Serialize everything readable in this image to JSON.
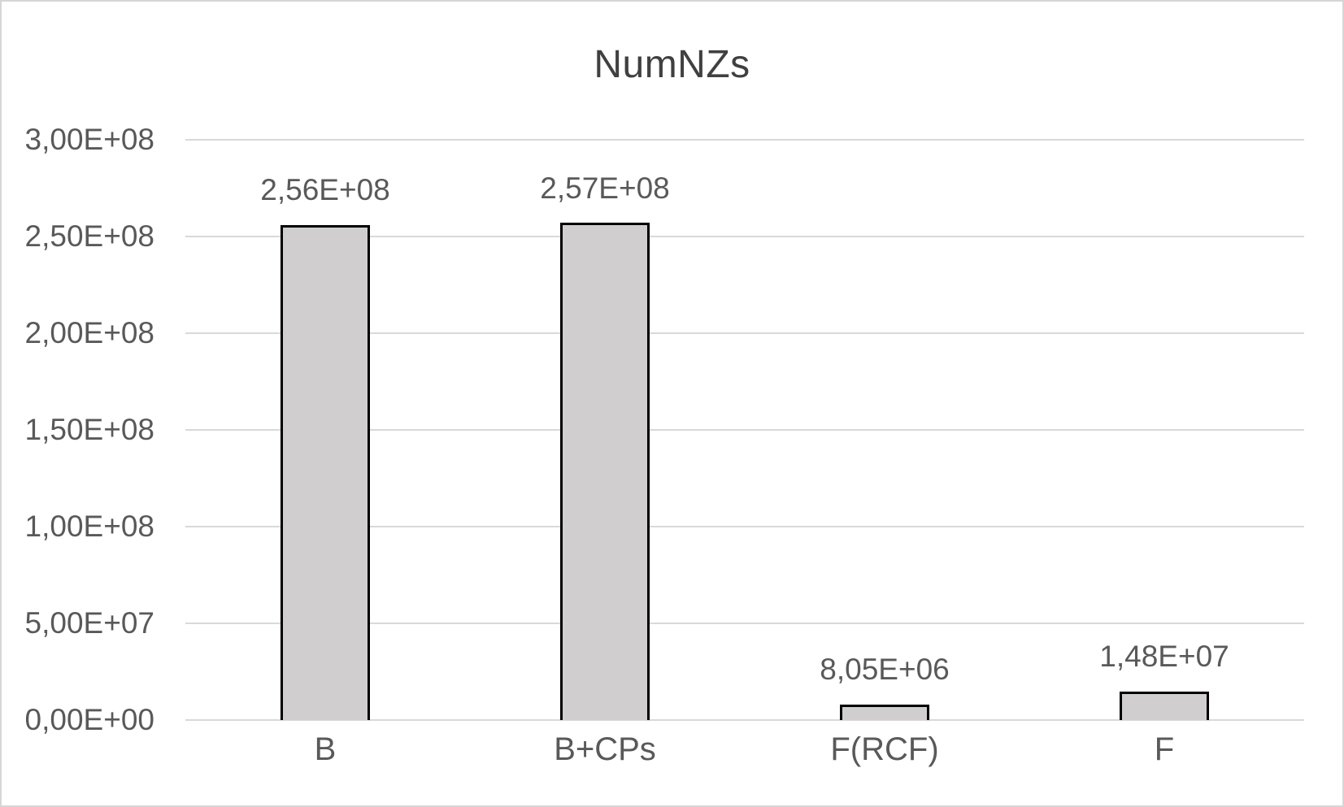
{
  "chart_data": {
    "type": "bar",
    "title": "NumNZs",
    "categories": [
      "B",
      "B+CPs",
      "F(RCF)",
      "F"
    ],
    "values": [
      256000000,
      257000000,
      8050000,
      14800000
    ],
    "value_labels": [
      "2,56E+08",
      "2,57E+08",
      "8,05E+06",
      "1,48E+07"
    ],
    "series": [
      {
        "name": "NumNZs",
        "values": [
          256000000,
          257000000,
          8050000,
          14800000
        ]
      }
    ],
    "y_ticks": [
      {
        "label": "0,00E+00",
        "value": 0
      },
      {
        "label": "5,00E+07",
        "value": 50000000
      },
      {
        "label": "1,00E+08",
        "value": 100000000
      },
      {
        "label": "1,50E+08",
        "value": 150000000
      },
      {
        "label": "2,00E+08",
        "value": 200000000
      },
      {
        "label": "2,50E+08",
        "value": 250000000
      },
      {
        "label": "3,00E+08",
        "value": 300000000
      }
    ],
    "ylim": [
      0,
      300000000
    ],
    "xlabel": "",
    "ylabel": "",
    "grid": true,
    "legend": "none",
    "colors": {
      "bar_fill": "#d0cece",
      "bar_border": "#000000",
      "gridline": "#d9d9d9",
      "axis_text": "#595959",
      "title_text": "#404040",
      "frame_border": "#d6d6d6",
      "background": "#ffffff"
    }
  }
}
